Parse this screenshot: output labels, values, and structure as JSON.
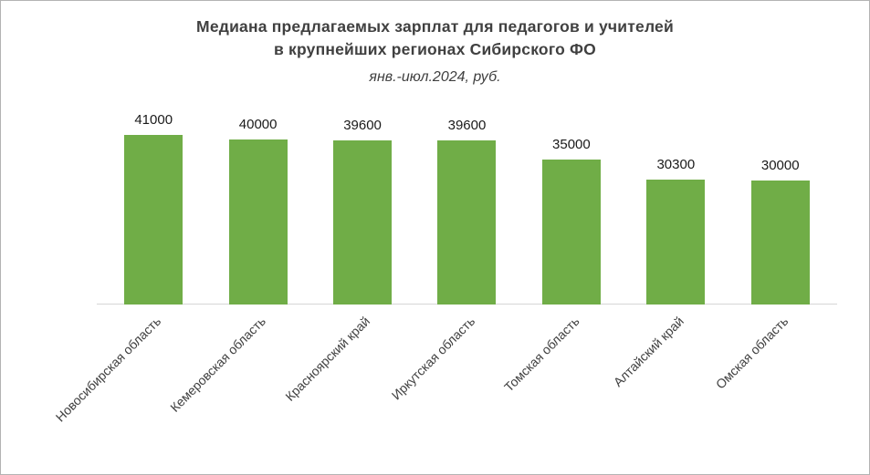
{
  "chart_data": {
    "type": "bar",
    "title": "Медиана предлагаемых зарплат для педагогов и учителей в крупнейших регионах Сибирского ФО",
    "title_lines": [
      "Медиана предлагаемых зарплат для педагогов и учителей",
      "в крупнейших регионах Сибирского ФО"
    ],
    "subtitle": "янв.-июл.2024, руб.",
    "categories": [
      "Новосибирская область",
      "Кемеровская область",
      "Красноярский край",
      "Иркутская область",
      "Томская область",
      "Алтайский край",
      "Омская область"
    ],
    "values": [
      41000,
      40000,
      39600,
      39600,
      35000,
      30300,
      30000
    ],
    "value_labels": [
      "41000",
      "40000",
      "39600",
      "39600",
      "35000",
      "30300",
      "30000"
    ],
    "bar_color": "#70ad47",
    "title_color": "#404040",
    "xlabel": "",
    "ylabel": "",
    "ylim": [
      0,
      41000
    ],
    "grid": false,
    "legend_position": "none"
  }
}
